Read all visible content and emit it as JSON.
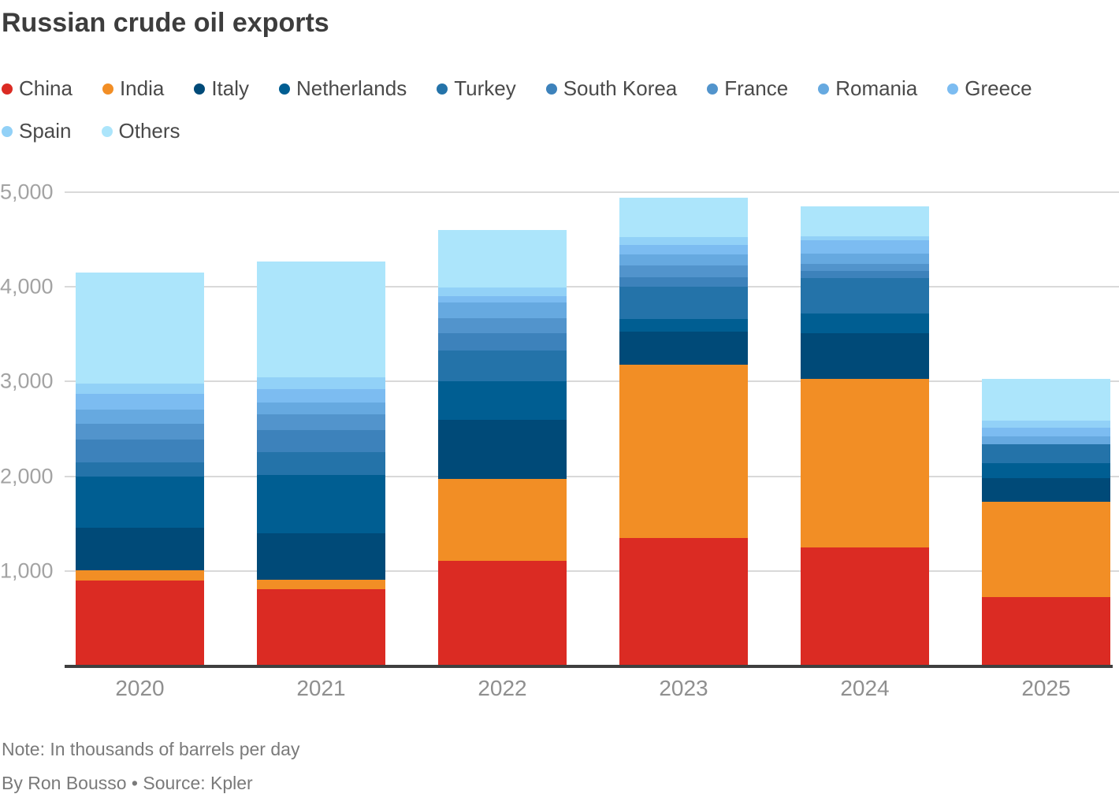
{
  "title": "Russian crude oil exports",
  "footer": {
    "note": "Note: In thousands of barrels per day",
    "byline": "By Ron Bousso • Source: Kpler"
  },
  "axis": {
    "yticks": [
      {
        "value": 5000,
        "label": "5,000"
      },
      {
        "value": 4000,
        "label": "4,000"
      },
      {
        "value": 3000,
        "label": "3,000"
      },
      {
        "value": 2000,
        "label": "2,000"
      },
      {
        "value": 1000,
        "label": "1,000"
      }
    ],
    "baseline_color": "#3f3f3f",
    "gridline_color": "#d9d9d9"
  },
  "chart_data": {
    "type": "bar",
    "stacked": true,
    "title": "Russian crude oil exports",
    "ylabel": "thousands of barrels per day",
    "ylim": [
      0,
      5000
    ],
    "grid": true,
    "legend_position": "top",
    "categories": [
      "2020",
      "2021",
      "2022",
      "2023",
      "2024",
      "2025"
    ],
    "series": [
      {
        "name": "China",
        "color": "#db2b23",
        "values": [
          895,
          810,
          1110,
          1350,
          1250,
          725
        ]
      },
      {
        "name": "India",
        "color": "#f28e25",
        "values": [
          115,
          100,
          865,
          1825,
          1775,
          1005
        ]
      },
      {
        "name": "Italy",
        "color": "#004a78",
        "values": [
          445,
          490,
          620,
          355,
          490,
          250
        ]
      },
      {
        "name": "Netherlands",
        "color": "#005e92",
        "values": [
          545,
          610,
          405,
          135,
          200,
          155
        ]
      },
      {
        "name": "Turkey",
        "color": "#2473a9",
        "values": [
          150,
          245,
          325,
          340,
          375,
          200
        ]
      },
      {
        "name": "South Korea",
        "color": "#3d82bb",
        "values": [
          240,
          235,
          185,
          95,
          75,
          0
        ]
      },
      {
        "name": "France",
        "color": "#5294cc",
        "values": [
          165,
          165,
          160,
          125,
          80,
          0
        ]
      },
      {
        "name": "Romania",
        "color": "#66a9e0",
        "values": [
          150,
          125,
          165,
          115,
          105,
          85
        ]
      },
      {
        "name": "Greece",
        "color": "#7cbcf1",
        "values": [
          165,
          140,
          70,
          105,
          140,
          90
        ]
      },
      {
        "name": "Spain",
        "color": "#92d1f7",
        "values": [
          110,
          125,
          90,
          80,
          45,
          75
        ]
      },
      {
        "name": "Others",
        "color": "#ace5fb",
        "values": [
          1170,
          1225,
          610,
          420,
          320,
          445
        ]
      }
    ],
    "totals": [
      4150,
      4270,
      4605,
      4945,
      4855,
      3030
    ]
  }
}
